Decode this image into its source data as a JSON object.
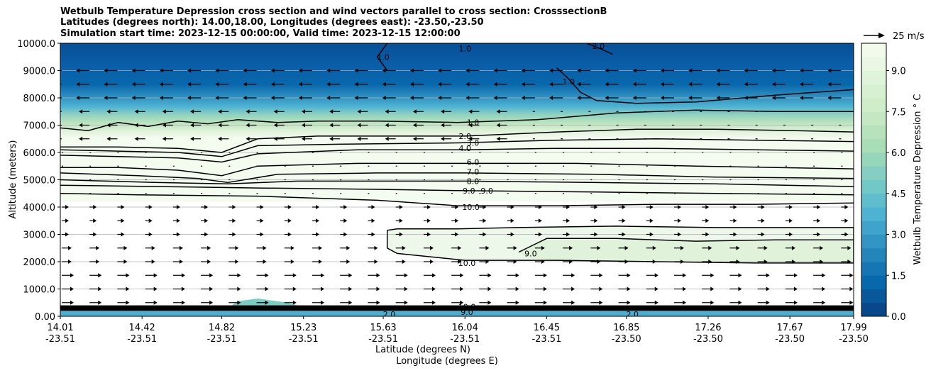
{
  "chart_data": {
    "type": "heatmap",
    "title": [
      "Wetbulb Temperature Depression cross section and wind vectors parallel to cross section: CrosssectionB",
      "Latitudes (degrees north): 14.00,18.00, Longitudes (degrees east): -23.50,-23.50",
      "Simulation start time: 2023-12-15 00:00:00, Valid time: 2023-12-15 12:00:00"
    ],
    "xlabel": "Latitude (degrees N)",
    "xlabel2": "Longitude (degrees E)",
    "ylabel": "Altitude (meters)",
    "ylim": [
      0,
      10000
    ],
    "yticks": [
      "0.00",
      "1000.0",
      "2000.0",
      "3000.0",
      "4000.0",
      "5000.0",
      "6000.0",
      "7000.0",
      "8000.0",
      "9000.0",
      "10000.0"
    ],
    "xticks": [
      {
        "lat": "14.01",
        "lon": "-23.51"
      },
      {
        "lat": "14.42",
        "lon": "-23.51"
      },
      {
        "lat": "14.82",
        "lon": "-23.51"
      },
      {
        "lat": "15.23",
        "lon": "-23.51"
      },
      {
        "lat": "15.63",
        "lon": "-23.51"
      },
      {
        "lat": "16.04",
        "lon": "-23.51"
      },
      {
        "lat": "16.45",
        "lon": "-23.51"
      },
      {
        "lat": "16.85",
        "lon": "-23.50"
      },
      {
        "lat": "17.26",
        "lon": "-23.50"
      },
      {
        "lat": "17.67",
        "lon": "-23.50"
      },
      {
        "lat": "17.99",
        "lon": "-23.50"
      }
    ],
    "grid": "horizontal",
    "colorbar": {
      "label": "Wetbulb Temperature Depression $^\\circ$C",
      "range": [
        0,
        10
      ],
      "ticks": [
        "0.0",
        "1.5",
        "3.0",
        "4.5",
        "6.0",
        "7.5",
        "9.0"
      ],
      "colors": [
        "#084081",
        "#0868ac",
        "#2b8cbe",
        "#4eb3d3",
        "#7bccc4",
        "#a8ddb5",
        "#ccebc5",
        "#e0f3db",
        "#f7fcf0"
      ]
    },
    "vector_key": "25 m/s",
    "contour_labels": [
      {
        "text": "1.0",
        "lat": 16.08,
        "alt": 7100
      },
      {
        "text": "2.0",
        "lat": 16.04,
        "alt": 6600
      },
      {
        "text": "3.0",
        "lat": 16.08,
        "alt": 6350
      },
      {
        "text": "4.0",
        "lat": 16.04,
        "alt": 6150
      },
      {
        "text": "6.0",
        "lat": 16.08,
        "alt": 5650
      },
      {
        "text": "7.0",
        "lat": 16.08,
        "alt": 5300
      },
      {
        "text": "8.0",
        "lat": 16.08,
        "alt": 4950
      },
      {
        "text": "9.0",
        "lat": 16.06,
        "alt": 4600
      },
      {
        "text": "9.0",
        "lat": 16.15,
        "alt": 4600
      },
      {
        "text": "10.0",
        "lat": 16.07,
        "alt": 4000
      },
      {
        "text": "10.0",
        "lat": 16.05,
        "alt": 1950
      },
      {
        "text": "9.0",
        "lat": 16.37,
        "alt": 2300
      },
      {
        "text": "1.0",
        "lat": 15.63,
        "alt": 9500
      },
      {
        "text": "1.0",
        "lat": 16.04,
        "alt": 9800
      },
      {
        "text": "1.0",
        "lat": 16.56,
        "alt": 8600
      },
      {
        "text": "2.0",
        "lat": 16.71,
        "alt": 9900
      },
      {
        "text": "10.0",
        "lat": 16.05,
        "alt": 350
      },
      {
        "text": "9.0",
        "lat": 16.05,
        "alt": 150
      },
      {
        "text": "2.0",
        "lat": 16.88,
        "alt": 80
      },
      {
        "text": "2.0",
        "lat": 15.66,
        "alt": 80
      }
    ],
    "contours": [
      {
        "level": 1,
        "points": [
          [
            14.01,
            6900
          ],
          [
            14.15,
            6800
          ],
          [
            14.3,
            7100
          ],
          [
            14.45,
            6950
          ],
          [
            14.6,
            7150
          ],
          [
            14.75,
            7050
          ],
          [
            14.9,
            7200
          ],
          [
            15.1,
            7100
          ],
          [
            15.3,
            7150
          ],
          [
            15.6,
            7150
          ],
          [
            16.0,
            7100
          ],
          [
            16.4,
            7200
          ],
          [
            16.8,
            7450
          ],
          [
            17.2,
            7550
          ],
          [
            17.6,
            7500
          ],
          [
            17.99,
            7500
          ]
        ]
      },
      {
        "level": 2,
        "points": [
          [
            14.01,
            6200
          ],
          [
            14.3,
            6200
          ],
          [
            14.6,
            6150
          ],
          [
            14.82,
            6000
          ],
          [
            15.0,
            6500
          ],
          [
            15.3,
            6600
          ],
          [
            15.7,
            6600
          ],
          [
            16.04,
            6600
          ],
          [
            16.5,
            6750
          ],
          [
            16.9,
            6850
          ],
          [
            17.3,
            6850
          ],
          [
            17.7,
            6800
          ],
          [
            17.99,
            6750
          ]
        ]
      },
      {
        "level": 3,
        "points": [
          [
            14.01,
            6100
          ],
          [
            14.3,
            6050
          ],
          [
            14.6,
            6000
          ],
          [
            14.82,
            5850
          ],
          [
            15.0,
            6250
          ],
          [
            15.4,
            6300
          ],
          [
            16.0,
            6350
          ],
          [
            16.5,
            6450
          ],
          [
            17.0,
            6500
          ],
          [
            17.5,
            6450
          ],
          [
            17.99,
            6400
          ]
        ]
      },
      {
        "level": 4,
        "points": [
          [
            14.01,
            5900
          ],
          [
            14.3,
            5850
          ],
          [
            14.6,
            5800
          ],
          [
            14.82,
            5650
          ],
          [
            15.0,
            5950
          ],
          [
            15.5,
            6100
          ],
          [
            16.04,
            6100
          ],
          [
            16.5,
            6150
          ],
          [
            17.0,
            6150
          ],
          [
            17.5,
            6100
          ],
          [
            17.99,
            6050
          ]
        ]
      },
      {
        "level": 6,
        "points": [
          [
            14.01,
            5450
          ],
          [
            14.3,
            5450
          ],
          [
            14.6,
            5350
          ],
          [
            14.82,
            5150
          ],
          [
            15.0,
            5500
          ],
          [
            15.5,
            5600
          ],
          [
            16.04,
            5600
          ],
          [
            16.6,
            5600
          ],
          [
            17.2,
            5500
          ],
          [
            17.99,
            5400
          ]
        ]
      },
      {
        "level": 7,
        "points": [
          [
            14.01,
            5250
          ],
          [
            14.4,
            5150
          ],
          [
            14.7,
            5050
          ],
          [
            14.85,
            4900
          ],
          [
            15.1,
            5200
          ],
          [
            15.6,
            5250
          ],
          [
            16.04,
            5250
          ],
          [
            16.7,
            5200
          ],
          [
            17.3,
            5100
          ],
          [
            17.99,
            5050
          ]
        ]
      },
      {
        "level": 8,
        "points": [
          [
            14.01,
            5000
          ],
          [
            14.5,
            4900
          ],
          [
            14.85,
            4850
          ],
          [
            15.2,
            4950
          ],
          [
            15.7,
            4950
          ],
          [
            16.04,
            4950
          ],
          [
            16.7,
            4900
          ],
          [
            17.3,
            4850
          ],
          [
            17.99,
            4750
          ]
        ]
      },
      {
        "level": 9,
        "points": [
          [
            14.01,
            4800
          ],
          [
            14.5,
            4750
          ],
          [
            15.0,
            4700
          ],
          [
            15.6,
            4650
          ],
          [
            16.04,
            4600
          ],
          [
            16.7,
            4550
          ],
          [
            17.3,
            4500
          ],
          [
            17.99,
            4450
          ]
        ]
      },
      {
        "level": 10,
        "points": [
          [
            14.01,
            4500
          ],
          [
            14.4,
            4450
          ],
          [
            15.0,
            4400
          ],
          [
            15.6,
            4250
          ],
          [
            16.0,
            4050
          ],
          [
            16.5,
            4050
          ],
          [
            17.0,
            4100
          ],
          [
            17.5,
            4100
          ],
          [
            17.99,
            4150
          ]
        ]
      },
      {
        "level": 10,
        "points": [
          [
            15.65,
            3150
          ],
          [
            15.7,
            3200
          ],
          [
            16.0,
            3200
          ],
          [
            16.3,
            3250
          ],
          [
            16.8,
            3300
          ],
          [
            17.3,
            3250
          ],
          [
            17.7,
            3250
          ],
          [
            17.99,
            3250
          ],
          [
            17.99,
            1950
          ],
          [
            17.5,
            1950
          ],
          [
            17.0,
            2000
          ],
          [
            16.5,
            2050
          ],
          [
            16.04,
            2050
          ],
          [
            15.7,
            2300
          ],
          [
            15.65,
            2500
          ],
          [
            15.65,
            3150
          ]
        ]
      },
      {
        "level": 9,
        "points": [
          [
            16.31,
            2350
          ],
          [
            16.45,
            2850
          ],
          [
            16.8,
            2850
          ],
          [
            17.2,
            2750
          ],
          [
            17.6,
            2800
          ],
          [
            17.99,
            2800
          ]
        ]
      },
      {
        "level": 1,
        "points": [
          [
            15.65,
            10000
          ],
          [
            15.6,
            9500
          ],
          [
            15.65,
            9000
          ]
        ]
      },
      {
        "level": 1,
        "points": [
          [
            16.5,
            9100
          ],
          [
            16.56,
            8700
          ],
          [
            16.62,
            8200
          ],
          [
            16.7,
            7900
          ],
          [
            16.9,
            7800
          ],
          [
            17.2,
            7850
          ],
          [
            17.6,
            8100
          ],
          [
            17.99,
            8300
          ]
        ]
      },
      {
        "level": 2,
        "points": [
          [
            16.65,
            10000
          ],
          [
            16.72,
            9800
          ],
          [
            16.78,
            9600
          ]
        ]
      }
    ],
    "surface_band": {
      "alt_bottom": 200,
      "alt_top": 400
    },
    "dry_lobe": {
      "lat_start": 14.85,
      "lat_end": 15.15,
      "alt_top": 650
    },
    "wind_vectors": {
      "columns": 29,
      "levels": [
        9000,
        8500,
        8000,
        7500,
        7000,
        6500,
        6000,
        5500,
        5000,
        4500,
        4000,
        3500,
        3000,
        2500,
        2000,
        1500,
        1000,
        500
      ]
    }
  }
}
